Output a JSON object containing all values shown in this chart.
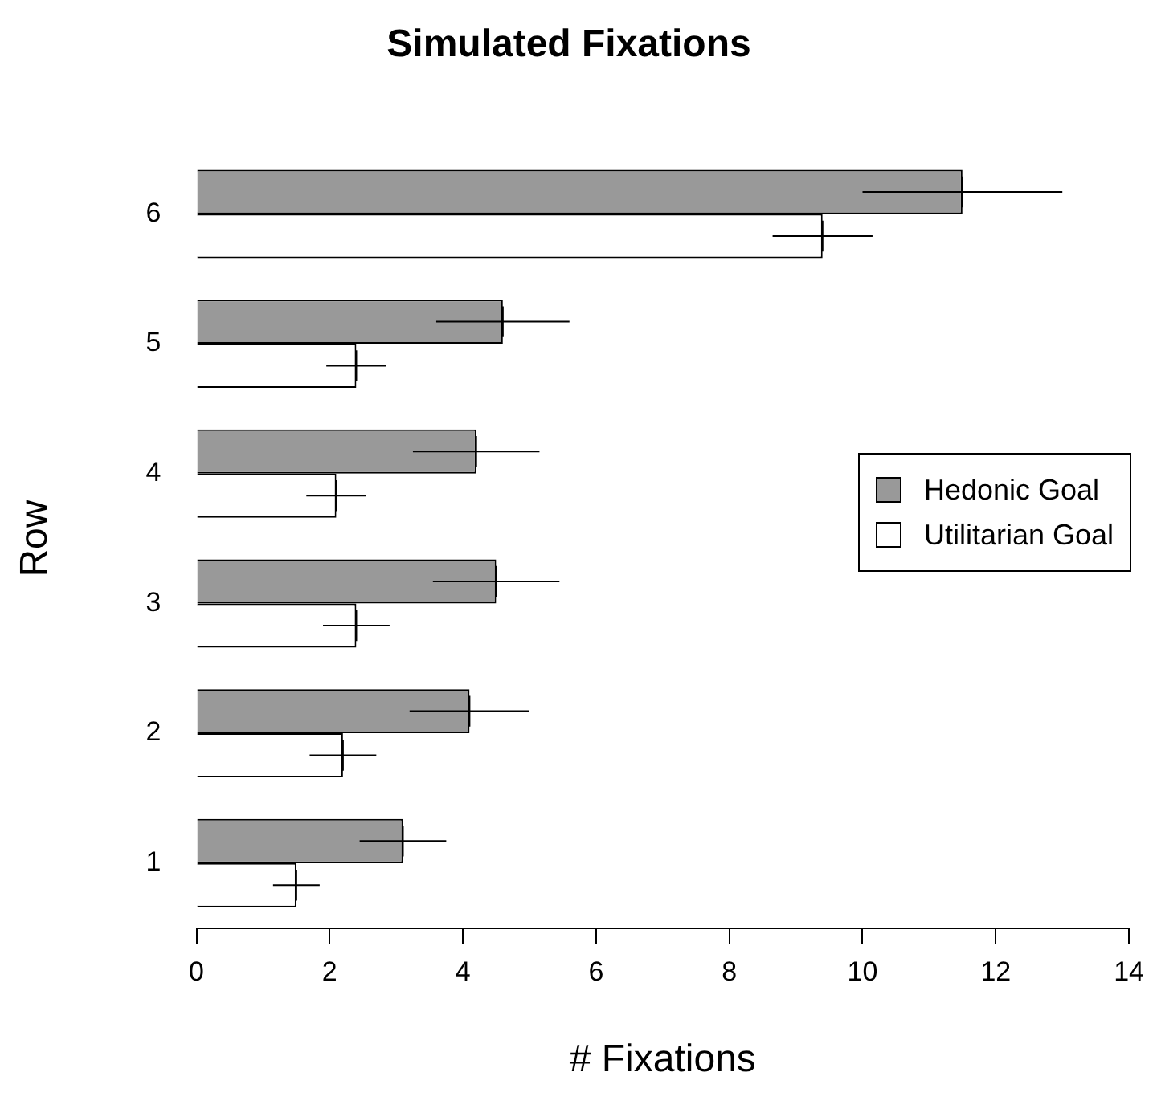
{
  "chart_data": {
    "type": "bar",
    "orientation": "horizontal",
    "title": "Simulated Fixations",
    "xlabel": "# Fixations",
    "ylabel": "Row",
    "categories": [
      "6",
      "5",
      "4",
      "3",
      "2",
      "1"
    ],
    "series": [
      {
        "name": "Hedonic Goal",
        "color": "#999999",
        "values": [
          11.5,
          4.6,
          4.2,
          4.5,
          4.1,
          3.1
        ],
        "errors": [
          1.5,
          1.0,
          0.95,
          0.95,
          0.9,
          0.65
        ]
      },
      {
        "name": "Utilitarian Goal",
        "color": "#ffffff",
        "values": [
          9.4,
          2.4,
          2.1,
          2.4,
          2.2,
          1.5
        ],
        "errors": [
          0.75,
          0.45,
          0.45,
          0.5,
          0.5,
          0.35
        ]
      }
    ],
    "xlim": [
      0,
      14
    ],
    "xticks": [
      0,
      2,
      4,
      6,
      8,
      10,
      12,
      14
    ],
    "grid": false,
    "legend": "right"
  }
}
